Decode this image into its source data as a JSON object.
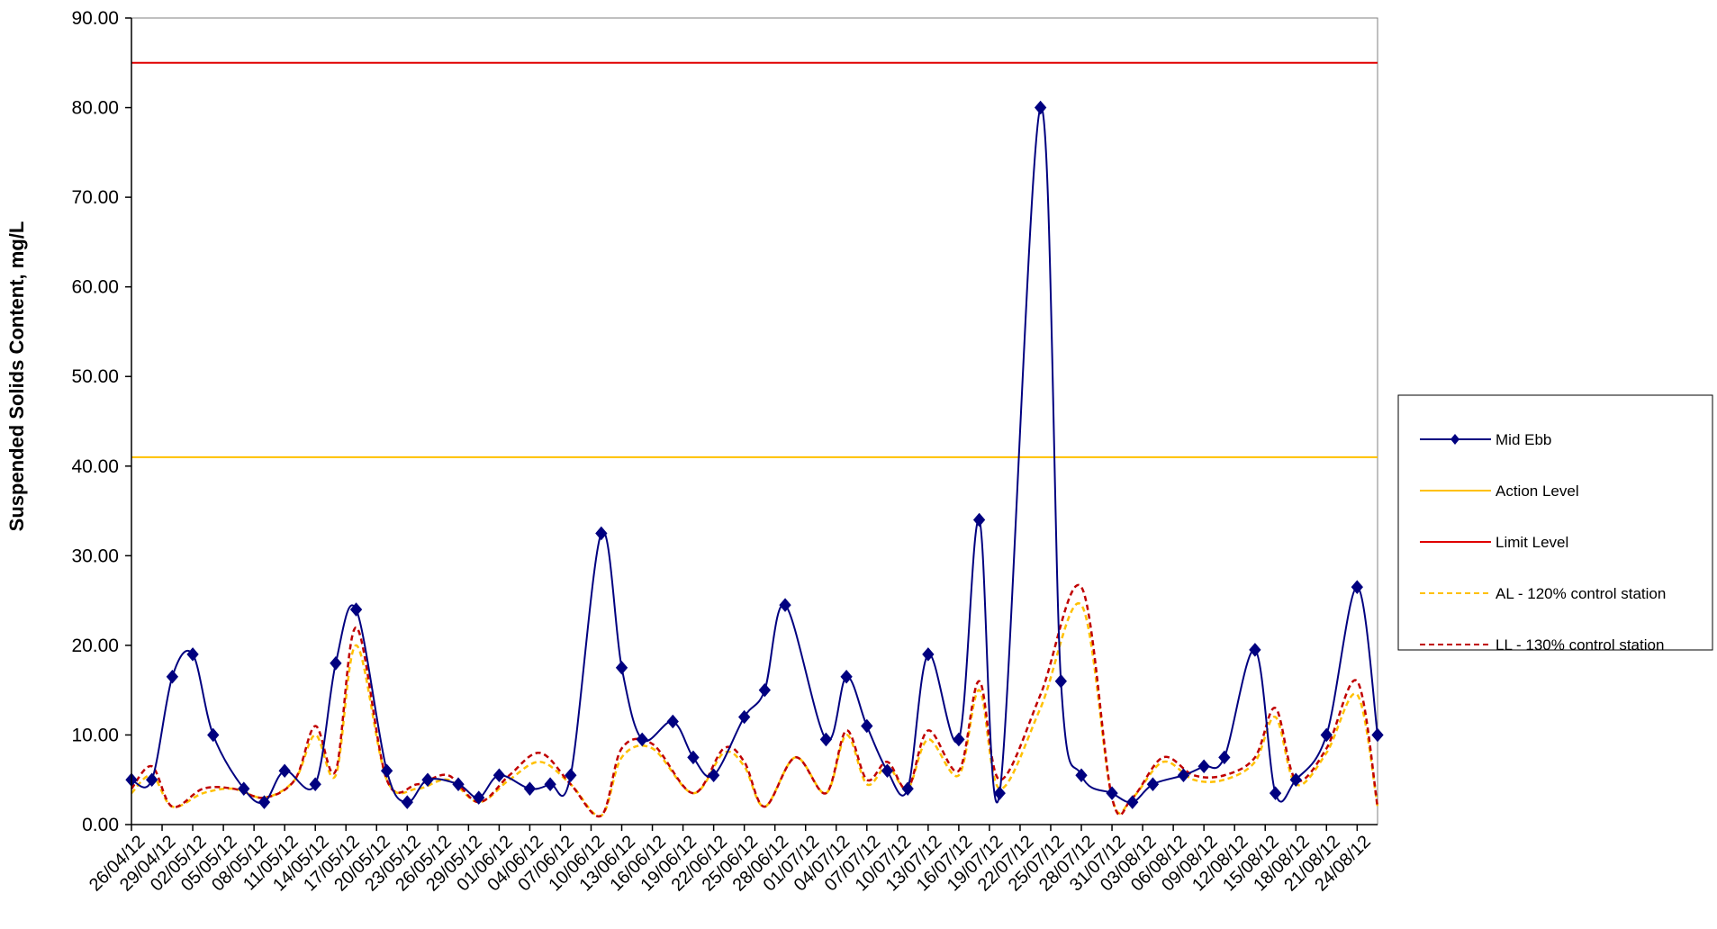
{
  "chart_data": {
    "type": "line",
    "title": "",
    "xlabel": "",
    "ylabel": "Suspended Solids Content, mg/L",
    "ylim": [
      0,
      90
    ],
    "y_tick_labels": [
      "0.00",
      "10.00",
      "20.00",
      "30.00",
      "40.00",
      "50.00",
      "60.00",
      "70.00",
      "80.00",
      "90.00"
    ],
    "x_tick_labels": [
      "26/04/12",
      "29/04/12",
      "02/05/12",
      "05/05/12",
      "08/05/12",
      "11/05/12",
      "14/05/12",
      "17/05/12",
      "20/05/12",
      "23/05/12",
      "26/05/12",
      "29/05/12",
      "01/06/12",
      "04/06/12",
      "07/06/12",
      "10/06/12",
      "13/06/12",
      "16/06/12",
      "19/06/12",
      "22/06/12",
      "25/06/12",
      "28/06/12",
      "01/07/12",
      "04/07/12",
      "07/07/12",
      "10/07/12",
      "13/07/12",
      "16/07/12",
      "19/07/12",
      "22/07/12",
      "25/07/12",
      "28/07/12",
      "31/07/12",
      "03/08/12",
      "06/08/12",
      "09/08/12",
      "12/08/12",
      "15/08/12",
      "18/08/12",
      "21/08/12",
      "24/08/12"
    ],
    "x_start": "26/04/12",
    "x_end": "26/08/12",
    "grid": false,
    "legend_position": "right",
    "series": [
      {
        "name": "Mid Ebb",
        "color": "#000080",
        "style": "solid-marker",
        "points": [
          [
            "26/04/12",
            5.0
          ],
          [
            "28/04/12",
            5.0
          ],
          [
            "30/04/12",
            16.5
          ],
          [
            "02/05/12",
            19.0
          ],
          [
            "04/05/12",
            10.0
          ],
          [
            "07/05/12",
            4.0
          ],
          [
            "09/05/12",
            2.5
          ],
          [
            "11/05/12",
            6.0
          ],
          [
            "14/05/12",
            4.5
          ],
          [
            "16/05/12",
            18.0
          ],
          [
            "18/05/12",
            24.0
          ],
          [
            "21/05/12",
            6.0
          ],
          [
            "23/05/12",
            2.5
          ],
          [
            "25/05/12",
            5.0
          ],
          [
            "28/05/12",
            4.5
          ],
          [
            "30/05/12",
            3.0
          ],
          [
            "01/06/12",
            5.5
          ],
          [
            "04/06/12",
            4.0
          ],
          [
            "06/06/12",
            4.5
          ],
          [
            "08/06/12",
            5.5
          ],
          [
            "11/06/12",
            32.5
          ],
          [
            "13/06/12",
            17.5
          ],
          [
            "15/06/12",
            9.5
          ],
          [
            "18/06/12",
            11.5
          ],
          [
            "20/06/12",
            7.5
          ],
          [
            "22/06/12",
            5.5
          ],
          [
            "25/06/12",
            12.0
          ],
          [
            "27/06/12",
            15.0
          ],
          [
            "29/06/12",
            24.5
          ],
          [
            "03/07/12",
            9.5
          ],
          [
            "05/07/12",
            16.5
          ],
          [
            "07/07/12",
            11.0
          ],
          [
            "09/07/12",
            6.0
          ],
          [
            "11/07/12",
            4.0
          ],
          [
            "13/07/12",
            19.0
          ],
          [
            "16/07/12",
            9.5
          ],
          [
            "18/07/12",
            34.0
          ],
          [
            "20/07/12",
            3.5
          ],
          [
            "24/07/12",
            80.0
          ],
          [
            "26/07/12",
            16.0
          ],
          [
            "28/07/12",
            5.5
          ],
          [
            "31/07/12",
            3.5
          ],
          [
            "02/08/12",
            2.5
          ],
          [
            "04/08/12",
            4.5
          ],
          [
            "07/08/12",
            5.5
          ],
          [
            "09/08/12",
            6.5
          ],
          [
            "11/08/12",
            7.5
          ],
          [
            "14/08/12",
            19.5
          ],
          [
            "16/08/12",
            3.5
          ],
          [
            "18/08/12",
            5.0
          ],
          [
            "21/08/12",
            10.0
          ],
          [
            "24/08/12",
            26.5
          ],
          [
            "26/08/12",
            10.0
          ]
        ]
      },
      {
        "name": "Action Level",
        "color": "#FFC000",
        "style": "solid",
        "value": 41
      },
      {
        "name": "Limit Level",
        "color": "#E00000",
        "style": "solid",
        "value": 85
      },
      {
        "name": "AL - 120% control station",
        "color": "#FFC000",
        "style": "dashed",
        "points": [
          [
            "26/04/12",
            3.5
          ],
          [
            "28/04/12",
            5.5
          ],
          [
            "30/04/12",
            2.0
          ],
          [
            "03/05/12",
            3.5
          ],
          [
            "06/05/12",
            4.0
          ],
          [
            "09/05/12",
            3.0
          ],
          [
            "12/05/12",
            5.0
          ],
          [
            "14/05/12",
            10.0
          ],
          [
            "16/05/12",
            5.5
          ],
          [
            "18/05/12",
            20.0
          ],
          [
            "21/05/12",
            5.0
          ],
          [
            "24/05/12",
            4.0
          ],
          [
            "27/05/12",
            5.0
          ],
          [
            "30/05/12",
            2.5
          ],
          [
            "02/06/12",
            5.0
          ],
          [
            "05/06/12",
            7.0
          ],
          [
            "08/06/12",
            4.5
          ],
          [
            "11/06/12",
            1.0
          ],
          [
            "13/06/12",
            7.5
          ],
          [
            "16/06/12",
            8.5
          ],
          [
            "20/06/12",
            3.5
          ],
          [
            "23/06/12",
            8.0
          ],
          [
            "25/06/12",
            6.5
          ],
          [
            "27/06/12",
            2.0
          ],
          [
            "30/06/12",
            7.5
          ],
          [
            "03/07/12",
            3.5
          ],
          [
            "05/07/12",
            10.0
          ],
          [
            "07/07/12",
            4.5
          ],
          [
            "09/07/12",
            6.5
          ],
          [
            "11/07/12",
            4.0
          ],
          [
            "13/07/12",
            9.5
          ],
          [
            "16/07/12",
            5.5
          ],
          [
            "18/07/12",
            15.0
          ],
          [
            "20/07/12",
            4.0
          ],
          [
            "24/07/12",
            13.0
          ],
          [
            "28/07/12",
            24.5
          ],
          [
            "31/07/12",
            3.0
          ],
          [
            "02/08/12",
            3.0
          ],
          [
            "05/08/12",
            7.0
          ],
          [
            "08/08/12",
            5.0
          ],
          [
            "11/08/12",
            5.0
          ],
          [
            "14/08/12",
            7.0
          ],
          [
            "16/08/12",
            12.0
          ],
          [
            "18/08/12",
            4.5
          ],
          [
            "21/08/12",
            8.0
          ],
          [
            "24/08/12",
            14.5
          ],
          [
            "26/08/12",
            2.0
          ]
        ]
      },
      {
        "name": "LL - 130% control station",
        "color": "#C00000",
        "style": "dashed",
        "points": [
          [
            "26/04/12",
            4.0
          ],
          [
            "28/04/12",
            6.5
          ],
          [
            "30/04/12",
            2.0
          ],
          [
            "03/05/12",
            4.0
          ],
          [
            "06/05/12",
            4.0
          ],
          [
            "09/05/12",
            3.0
          ],
          [
            "12/05/12",
            5.0
          ],
          [
            "14/05/12",
            11.0
          ],
          [
            "16/05/12",
            6.0
          ],
          [
            "18/05/12",
            22.0
          ],
          [
            "21/05/12",
            5.0
          ],
          [
            "24/05/12",
            4.5
          ],
          [
            "27/05/12",
            5.5
          ],
          [
            "30/05/12",
            2.5
          ],
          [
            "02/06/12",
            5.5
          ],
          [
            "05/06/12",
            8.0
          ],
          [
            "08/06/12",
            4.5
          ],
          [
            "11/06/12",
            1.0
          ],
          [
            "13/06/12",
            8.5
          ],
          [
            "16/06/12",
            9.0
          ],
          [
            "20/06/12",
            3.5
          ],
          [
            "23/06/12",
            8.5
          ],
          [
            "25/06/12",
            7.0
          ],
          [
            "27/06/12",
            2.0
          ],
          [
            "30/06/12",
            7.5
          ],
          [
            "03/07/12",
            3.5
          ],
          [
            "05/07/12",
            10.5
          ],
          [
            "07/07/12",
            5.0
          ],
          [
            "09/07/12",
            7.0
          ],
          [
            "11/07/12",
            4.0
          ],
          [
            "13/07/12",
            10.5
          ],
          [
            "16/07/12",
            6.0
          ],
          [
            "18/07/12",
            16.0
          ],
          [
            "20/07/12",
            5.0
          ],
          [
            "24/07/12",
            14.5
          ],
          [
            "28/07/12",
            26.5
          ],
          [
            "31/07/12",
            3.0
          ],
          [
            "02/08/12",
            3.0
          ],
          [
            "05/08/12",
            7.5
          ],
          [
            "08/08/12",
            5.5
          ],
          [
            "11/08/12",
            5.5
          ],
          [
            "14/08/12",
            7.5
          ],
          [
            "16/08/12",
            13.0
          ],
          [
            "18/08/12",
            5.0
          ],
          [
            "21/08/12",
            8.5
          ],
          [
            "24/08/12",
            16.0
          ],
          [
            "26/08/12",
            2.0
          ]
        ]
      }
    ]
  }
}
